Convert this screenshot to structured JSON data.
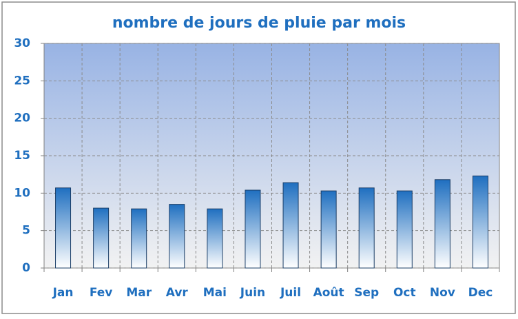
{
  "chart_data": {
    "type": "bar",
    "title": "nombre de jours de pluie par mois",
    "categories": [
      "Jan",
      "Fev",
      "Mar",
      "Avr",
      "Mai",
      "Juin",
      "Juil",
      "Août",
      "Sep",
      "Oct",
      "Nov",
      "Dec"
    ],
    "values": [
      10.7,
      8.0,
      7.9,
      8.5,
      7.9,
      10.4,
      11.4,
      10.3,
      10.7,
      10.3,
      11.8,
      12.3
    ],
    "color": "#1f6fc0",
    "ylim": [
      0,
      30
    ],
    "yticks": [
      0,
      5,
      10,
      15,
      20,
      25,
      30
    ],
    "grid": true
  }
}
